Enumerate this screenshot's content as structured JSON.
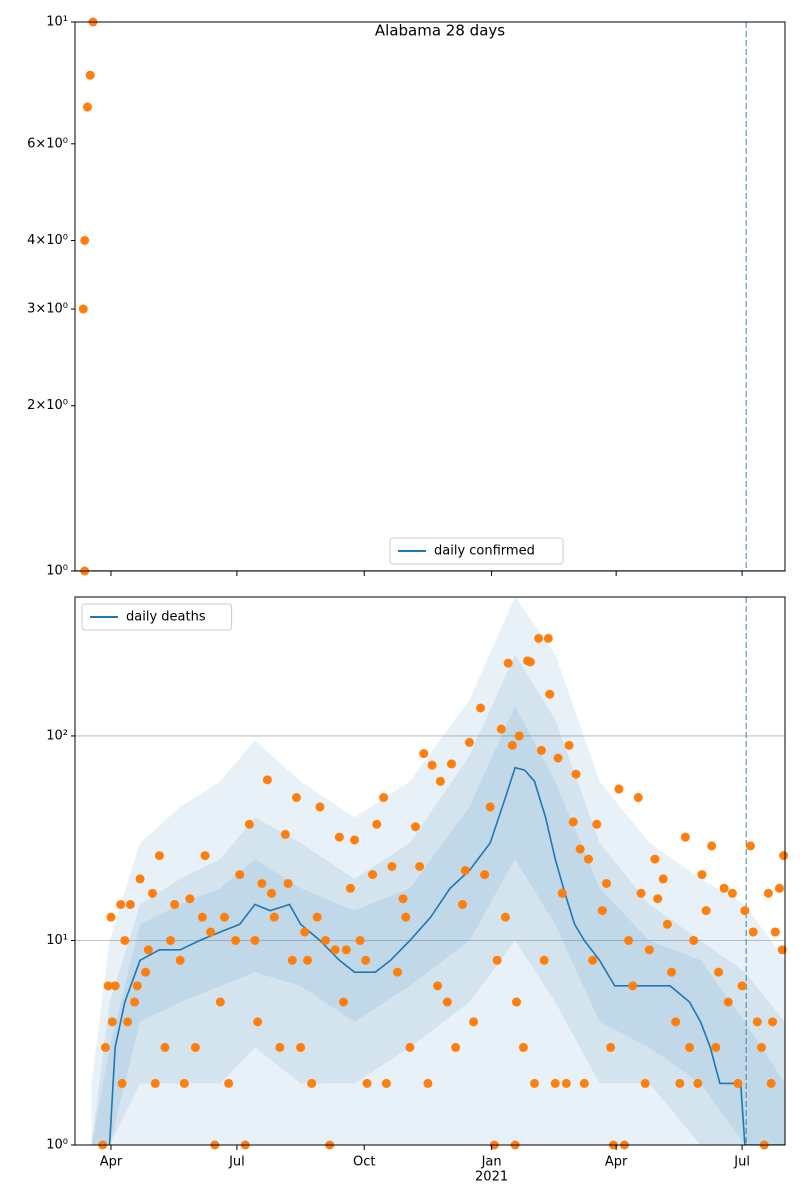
{
  "chart_data": [
    {
      "type": "line",
      "title": "Alabama 28 days",
      "log_y": true,
      "xlim": [
        5,
        518
      ],
      "ylim": [
        1,
        10
      ],
      "yticks": [
        {
          "value": 1,
          "label": "10⁰"
        },
        {
          "value": 2,
          "label": "2×10⁰"
        },
        {
          "value": 3,
          "label": "3×10⁰"
        },
        {
          "value": 4,
          "label": "4×10⁰"
        },
        {
          "value": 6,
          "label": "6×10⁰"
        },
        {
          "value": 10,
          "label": "10¹"
        }
      ],
      "grid": false,
      "legend": "lower center",
      "vline": 490,
      "series": [
        {
          "name": "daily confirmed",
          "color": "#1f77b4",
          "x": [
            5,
            518
          ],
          "values": [
            1,
            1
          ]
        }
      ],
      "points": {
        "color": "#ff7f0e",
        "x": [
          11,
          12,
          12,
          14,
          16,
          18
        ],
        "values": [
          3,
          4,
          1,
          7,
          8,
          10
        ]
      }
    },
    {
      "type": "line",
      "log_y": true,
      "xlim": [
        5,
        518
      ],
      "ylim": [
        1,
        478
      ],
      "yticks": [
        {
          "value": 1,
          "label": "10⁰"
        },
        {
          "value": 10,
          "label": "10¹"
        },
        {
          "value": 100,
          "label": "10²"
        }
      ],
      "xticks": [
        {
          "value": 31,
          "label": "Apr"
        },
        {
          "value": 122,
          "label": "Jul"
        },
        {
          "value": 214,
          "label": "Oct"
        },
        {
          "value": 306,
          "label": "Jan"
        },
        {
          "value": 396,
          "label": "Apr"
        },
        {
          "value": 487,
          "label": "Jul"
        }
      ],
      "x_year_label": {
        "value": 306,
        "label": "2021"
      },
      "grid": true,
      "legend": "upper left",
      "vline": 490,
      "band_color": "#1f77b4",
      "band_x": [
        17,
        30,
        52,
        81,
        110,
        135,
        168,
        207,
        247,
        290,
        323,
        352,
        384,
        420,
        457,
        489,
        518
      ],
      "bands": [
        {
          "upper": [
            2,
            10,
            30,
            45,
            60,
            95,
            60,
            40,
            60,
            150,
            478,
            250,
            60,
            30,
            20,
            15,
            8
          ],
          "lower": [
            1,
            1,
            1,
            1,
            1,
            1,
            1,
            1,
            1,
            1,
            1,
            1,
            1,
            1,
            1,
            1,
            1
          ]
        },
        {
          "upper": [
            1,
            5,
            15,
            20,
            25,
            40,
            30,
            20,
            30,
            80,
            250,
            120,
            30,
            15,
            10,
            7,
            4
          ],
          "lower": [
            1,
            1,
            2,
            2,
            2,
            3,
            2,
            2,
            3,
            5,
            10,
            5,
            2,
            2,
            1,
            1,
            1
          ]
        },
        {
          "upper": [
            1,
            3,
            12,
            15,
            18,
            25,
            18,
            14,
            18,
            45,
            140,
            60,
            18,
            10,
            8,
            4,
            2
          ],
          "lower": [
            1,
            1,
            4,
            5,
            6,
            7,
            6,
            4,
            6,
            10,
            25,
            12,
            4,
            3,
            2,
            1,
            1
          ]
        }
      ],
      "series": [
        {
          "name": "daily deaths",
          "color": "#1f77b4",
          "x": [
            30,
            34,
            41,
            52,
            66,
            81,
            95,
            110,
            124,
            135,
            146,
            160,
            168,
            182,
            196,
            207,
            222,
            233,
            247,
            262,
            276,
            290,
            305,
            316,
            323,
            330,
            337,
            345,
            352,
            359,
            366,
            373,
            384,
            395,
            406,
            420,
            435,
            449,
            457,
            464,
            471,
            478,
            486,
            489,
            500,
            518
          ],
          "values": [
            1,
            3,
            5,
            8,
            9,
            9,
            10,
            11,
            12,
            15,
            14,
            15,
            12,
            10,
            8,
            7,
            7,
            8,
            10,
            13,
            18,
            22,
            30,
            50,
            70,
            68,
            60,
            40,
            25,
            17,
            12,
            10,
            8,
            6,
            6,
            6,
            6,
            5,
            4,
            3,
            2,
            2,
            2,
            1,
            1,
            1
          ]
        }
      ],
      "points": {
        "color": "#ff7f0e",
        "x": [
          25,
          27,
          29,
          31,
          32,
          34,
          38,
          39,
          41,
          43,
          45,
          48,
          50,
          52,
          56,
          58,
          61,
          63,
          66,
          70,
          74,
          77,
          81,
          84,
          88,
          92,
          97,
          99,
          103,
          106,
          110,
          113,
          116,
          121,
          124,
          128,
          131,
          135,
          137,
          140,
          144,
          147,
          149,
          153,
          157,
          159,
          162,
          165,
          168,
          171,
          173,
          176,
          180,
          182,
          186,
          189,
          193,
          196,
          199,
          201,
          204,
          207,
          211,
          215,
          216,
          220,
          223,
          228,
          230,
          234,
          238,
          242,
          244,
          247,
          251,
          254,
          257,
          260,
          263,
          267,
          269,
          274,
          277,
          280,
          285,
          287,
          290,
          293,
          298,
          301,
          305,
          308,
          310,
          313,
          316,
          318,
          321,
          323,
          324,
          326,
          329,
          332,
          334,
          337,
          340,
          342,
          344,
          347,
          348,
          352,
          354,
          357,
          360,
          362,
          365,
          367,
          370,
          373,
          376,
          379,
          382,
          386,
          389,
          392,
          394,
          398,
          402,
          405,
          408,
          412,
          414,
          417,
          420,
          424,
          426,
          430,
          433,
          436,
          439,
          442,
          446,
          449,
          452,
          455,
          458,
          461,
          465,
          468,
          470,
          474,
          477,
          480,
          484,
          487,
          489,
          493,
          495,
          498,
          501,
          503,
          506,
          508,
          509,
          511,
          514,
          516,
          517
        ],
        "values": [
          1,
          3,
          6,
          13,
          4,
          6,
          15,
          2,
          10,
          4,
          15,
          5,
          6,
          20,
          7,
          9,
          17,
          2,
          26,
          3,
          10,
          15,
          8,
          2,
          16,
          3,
          13,
          26,
          11,
          1,
          5,
          13,
          2,
          10,
          21,
          1,
          37,
          10,
          4,
          19,
          61,
          17,
          13,
          3,
          33,
          19,
          8,
          50,
          3,
          11,
          8,
          2,
          13,
          45,
          10,
          1,
          9,
          32,
          5,
          9,
          18,
          31,
          10,
          8,
          2,
          21,
          37,
          50,
          2,
          23,
          7,
          16,
          13,
          3,
          36,
          23,
          82,
          2,
          72,
          6,
          60,
          5,
          73,
          3,
          15,
          22,
          93,
          4,
          137,
          21,
          45,
          1,
          8,
          108,
          13,
          227,
          90,
          1,
          5,
          100,
          3,
          233,
          230,
          2,
          300,
          85,
          8,
          300,
          160,
          2,
          78,
          17,
          2,
          90,
          38,
          65,
          28,
          2,
          25,
          8,
          37,
          14,
          19,
          3,
          1,
          55,
          1,
          10,
          6,
          50,
          17,
          2,
          9,
          25,
          16,
          20,
          12,
          7,
          4,
          2,
          32,
          3,
          10,
          2,
          21,
          14,
          29,
          3,
          7,
          18,
          5,
          17,
          2,
          6,
          14,
          29,
          11,
          4,
          3,
          1,
          17,
          2,
          4,
          11,
          18,
          9,
          26
        ]
      }
    }
  ]
}
